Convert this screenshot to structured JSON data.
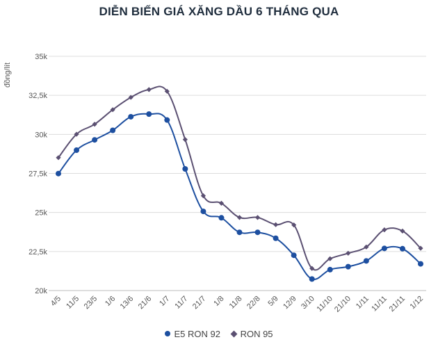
{
  "chart_data": {
    "type": "line",
    "title": "DIỄN BIẾN GIÁ XĂNG DẦU 6 THÁNG QUA",
    "ylabel": "đồng/lít",
    "ylim": [
      20000,
      35000
    ],
    "yticks": [
      20000,
      22500,
      25000,
      27500,
      30000,
      32500,
      35000
    ],
    "ytick_labels": [
      "20k",
      "22,5k",
      "25k",
      "27,5k",
      "30k",
      "32,5k",
      "35k"
    ],
    "grid": "horizontal",
    "legend": "bottom",
    "categories": [
      "4/5",
      "11/5",
      "23/5",
      "1/6",
      "13/6",
      "21/6",
      "1/7",
      "11/7",
      "21/7",
      "1/8",
      "11/8",
      "22/8",
      "5/9",
      "12/9",
      "3/10",
      "11/10",
      "21/10",
      "1/11",
      "11/11",
      "21/11",
      "1/12"
    ],
    "series": [
      {
        "name": "E5 RON 92",
        "color": "#1d4fa0",
        "marker": "circle",
        "values": [
          27490,
          28990,
          29650,
          30260,
          31130,
          31300,
          30920,
          27790,
          25070,
          24660,
          23730,
          23730,
          23350,
          22260,
          20740,
          21340,
          21530,
          21900,
          22700,
          22680,
          21710
        ]
      },
      {
        "name": "RON 95",
        "color": "#5b5072",
        "marker": "diamond",
        "values": [
          28510,
          30010,
          30650,
          31580,
          32370,
          32870,
          32760,
          29670,
          26070,
          25590,
          24680,
          24680,
          24220,
          24200,
          21420,
          22040,
          22390,
          22790,
          23890,
          23810,
          22710
        ]
      }
    ]
  }
}
